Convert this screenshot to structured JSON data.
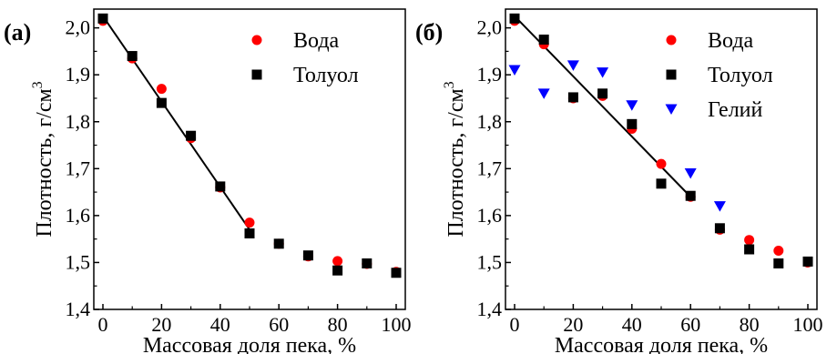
{
  "chart_data": [
    {
      "type": "scatter",
      "panel_label": "(а)",
      "xlabel": "Массовая доля пека, %",
      "ylabel_main": "Плотность, г/см",
      "ylabel_sup": "3",
      "xlim": [
        0,
        100
      ],
      "ylim": [
        1.4,
        2.0
      ],
      "xticks": [
        "0",
        "20",
        "40",
        "60",
        "80",
        "100"
      ],
      "yticks": [
        "1,4",
        "1,5",
        "1,6",
        "1,7",
        "1,8",
        "1,9",
        "2,0"
      ],
      "legend_position": "top-right",
      "series": [
        {
          "name": "Вода",
          "marker": "circle",
          "color": "#ff0000",
          "x": [
            0,
            10,
            20,
            30,
            40,
            50,
            60,
            70,
            80,
            90,
            100
          ],
          "y": [
            2.015,
            1.935,
            1.87,
            1.765,
            1.66,
            1.585,
            1.54,
            1.513,
            1.503,
            1.497,
            1.48
          ]
        },
        {
          "name": "Толуол",
          "marker": "square",
          "color": "#000000",
          "x": [
            0,
            10,
            20,
            30,
            40,
            50,
            60,
            70,
            80,
            90,
            100
          ],
          "y": [
            2.02,
            1.94,
            1.84,
            1.77,
            1.662,
            1.562,
            1.54,
            1.515,
            1.483,
            1.498,
            1.478
          ]
        }
      ],
      "fit_line": {
        "x": [
          0,
          50
        ],
        "y": [
          2.025,
          1.57
        ]
      }
    },
    {
      "type": "scatter",
      "panel_label": "(б)",
      "xlabel": "Массовая доля пека, %",
      "ylabel_main": "Плотность, г/см",
      "ylabel_sup": "3",
      "xlim": [
        0,
        100
      ],
      "ylim": [
        1.4,
        2.0
      ],
      "xticks": [
        "0",
        "20",
        "40",
        "60",
        "80",
        "100"
      ],
      "yticks": [
        "1,4",
        "1,5",
        "1,6",
        "1,7",
        "1,8",
        "1,9",
        "2,0"
      ],
      "legend_position": "top-right",
      "series": [
        {
          "name": "Вода",
          "marker": "circle",
          "color": "#ff0000",
          "x": [
            0,
            10,
            20,
            30,
            40,
            50,
            60,
            70,
            80,
            90,
            100
          ],
          "y": [
            2.015,
            1.965,
            1.85,
            1.855,
            1.785,
            1.71,
            1.64,
            1.57,
            1.548,
            1.525,
            1.5
          ]
        },
        {
          "name": "Толуол",
          "marker": "square",
          "color": "#000000",
          "x": [
            0,
            10,
            20,
            30,
            40,
            50,
            60,
            70,
            80,
            90,
            100
          ],
          "y": [
            2.02,
            1.975,
            1.852,
            1.86,
            1.795,
            1.668,
            1.642,
            1.573,
            1.528,
            1.498,
            1.502
          ]
        },
        {
          "name": "Гелий",
          "marker": "triangle-down",
          "color": "#0000ff",
          "x": [
            0,
            10,
            20,
            30,
            40,
            60,
            70
          ],
          "y": [
            1.91,
            1.86,
            1.92,
            1.905,
            1.835,
            1.69,
            1.62
          ]
        }
      ],
      "fit_line": {
        "x": [
          0,
          60
        ],
        "y": [
          2.025,
          1.64
        ]
      }
    }
  ]
}
